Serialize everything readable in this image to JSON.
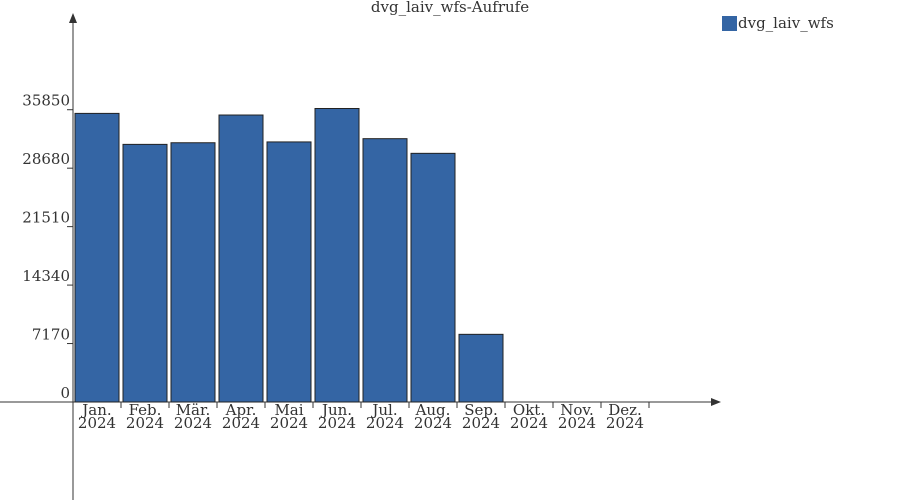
{
  "chart_data": {
    "type": "bar",
    "title": "dvg_laiv_wfs-Aufrufe",
    "categories": [
      [
        "Jan.",
        "2024"
      ],
      [
        "Feb.",
        "2024"
      ],
      [
        "Mär.",
        "2024"
      ],
      [
        "Apr.",
        "2024"
      ],
      [
        "Mai",
        "2024"
      ],
      [
        "Jun.",
        "2024"
      ],
      [
        "Jul.",
        "2024"
      ],
      [
        "Aug.",
        "2024"
      ],
      [
        "Sep.",
        "2024"
      ],
      [
        "Okt.",
        "2024"
      ],
      [
        "Nov.",
        "2024"
      ],
      [
        "Dez.",
        "2024"
      ]
    ],
    "series": [
      {
        "name": "dvg_laiv_wfs",
        "color": "#3465a4",
        "values": [
          35400,
          31600,
          31800,
          35200,
          31900,
          36000,
          32300,
          30500,
          8300,
          null,
          null,
          null
        ]
      }
    ],
    "ylim": [
      0,
      47100
    ],
    "yticks": [
      0,
      7170,
      14340,
      21510,
      28680,
      35850
    ]
  }
}
